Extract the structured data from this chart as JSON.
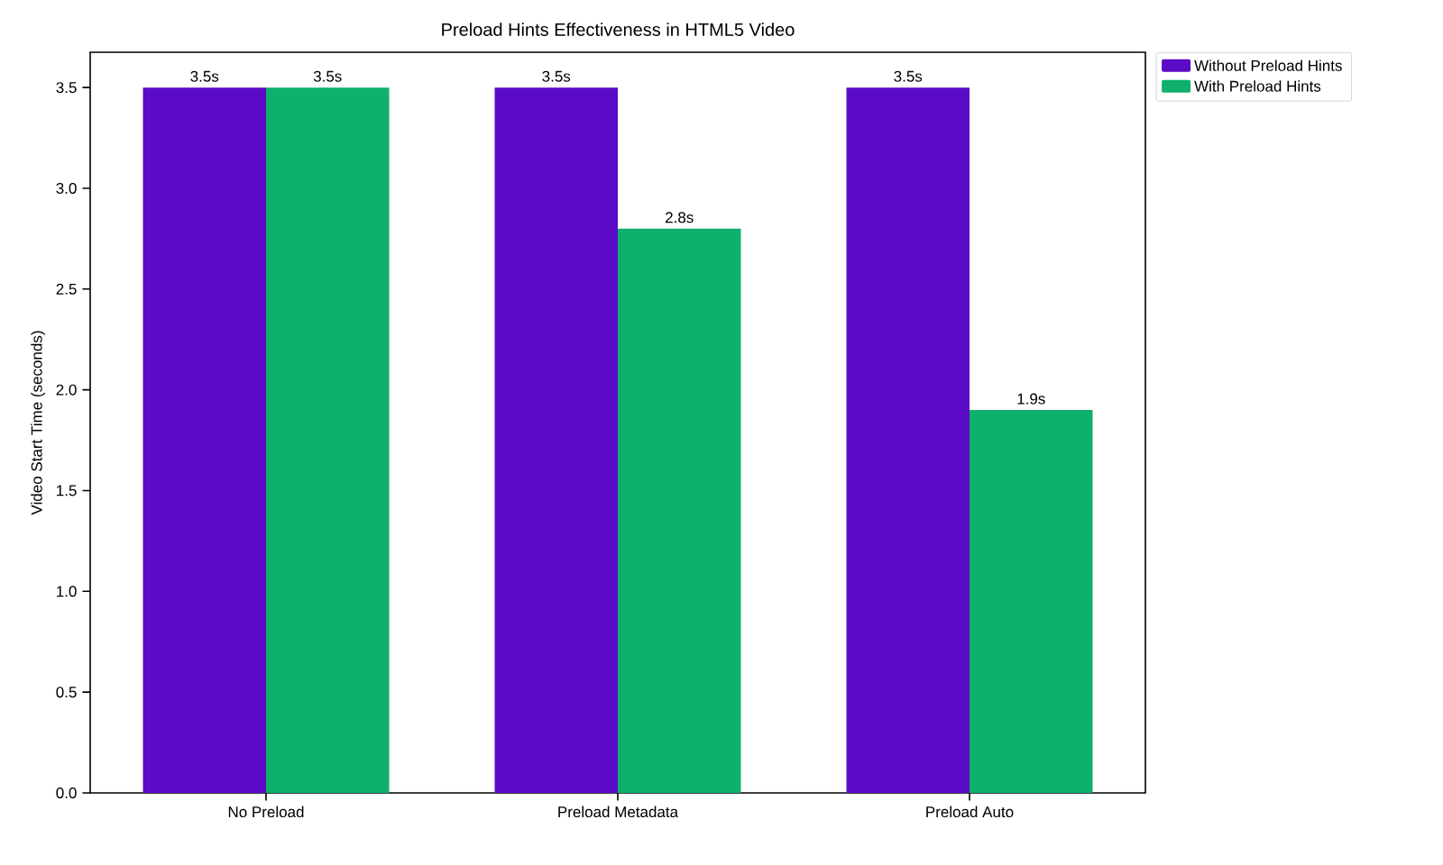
{
  "chart_data": {
    "type": "bar",
    "title": "Preload Hints Effectiveness in HTML5 Video",
    "ylabel": "Video Start Time (seconds)",
    "categories": [
      "No Preload",
      "Preload Metadata",
      "Preload Auto"
    ],
    "series": [
      {
        "name": "Without Preload Hints",
        "color": "#5b0bc6",
        "values": [
          3.5,
          3.5,
          3.5
        ],
        "value_labels": [
          "3.5s",
          "3.5s",
          "3.5s"
        ]
      },
      {
        "name": "With Preload Hints",
        "color": "#0fb06c",
        "values": [
          3.5,
          2.8,
          1.9
        ],
        "value_labels": [
          "3.5s",
          "2.8s",
          "1.9s"
        ]
      }
    ],
    "ylim": [
      0,
      3.675
    ],
    "yticks": [
      {
        "value": 0,
        "label": "0.0"
      },
      {
        "value": 0.5,
        "label": "0.5"
      },
      {
        "value": 1,
        "label": "1.0"
      },
      {
        "value": 1.5,
        "label": "1.5"
      },
      {
        "value": 2,
        "label": "2.0"
      },
      {
        "value": 2.5,
        "label": "2.5"
      },
      {
        "value": 3,
        "label": "3.0"
      },
      {
        "value": 3.5,
        "label": "3.5"
      }
    ],
    "grid": false,
    "legend": "top right"
  }
}
